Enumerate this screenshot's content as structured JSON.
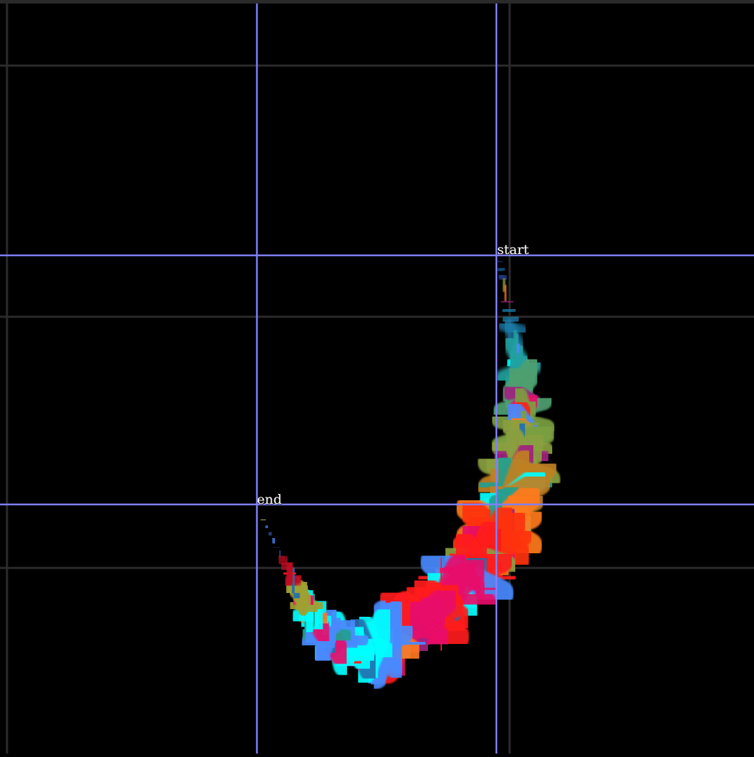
{
  "canvas": {
    "background": "#000000",
    "grid_color": "#2b2b2b",
    "guide_color": "#8080ff"
  },
  "markers": {
    "start_label": "start",
    "end_label": "end"
  },
  "stroke_palette": [
    "#ff1a1a",
    "#e8106a",
    "#4a8aff",
    "#00ffff",
    "#8aa040",
    "#ff7a1a",
    "#20a090",
    "#2070b0",
    "#a02080"
  ]
}
